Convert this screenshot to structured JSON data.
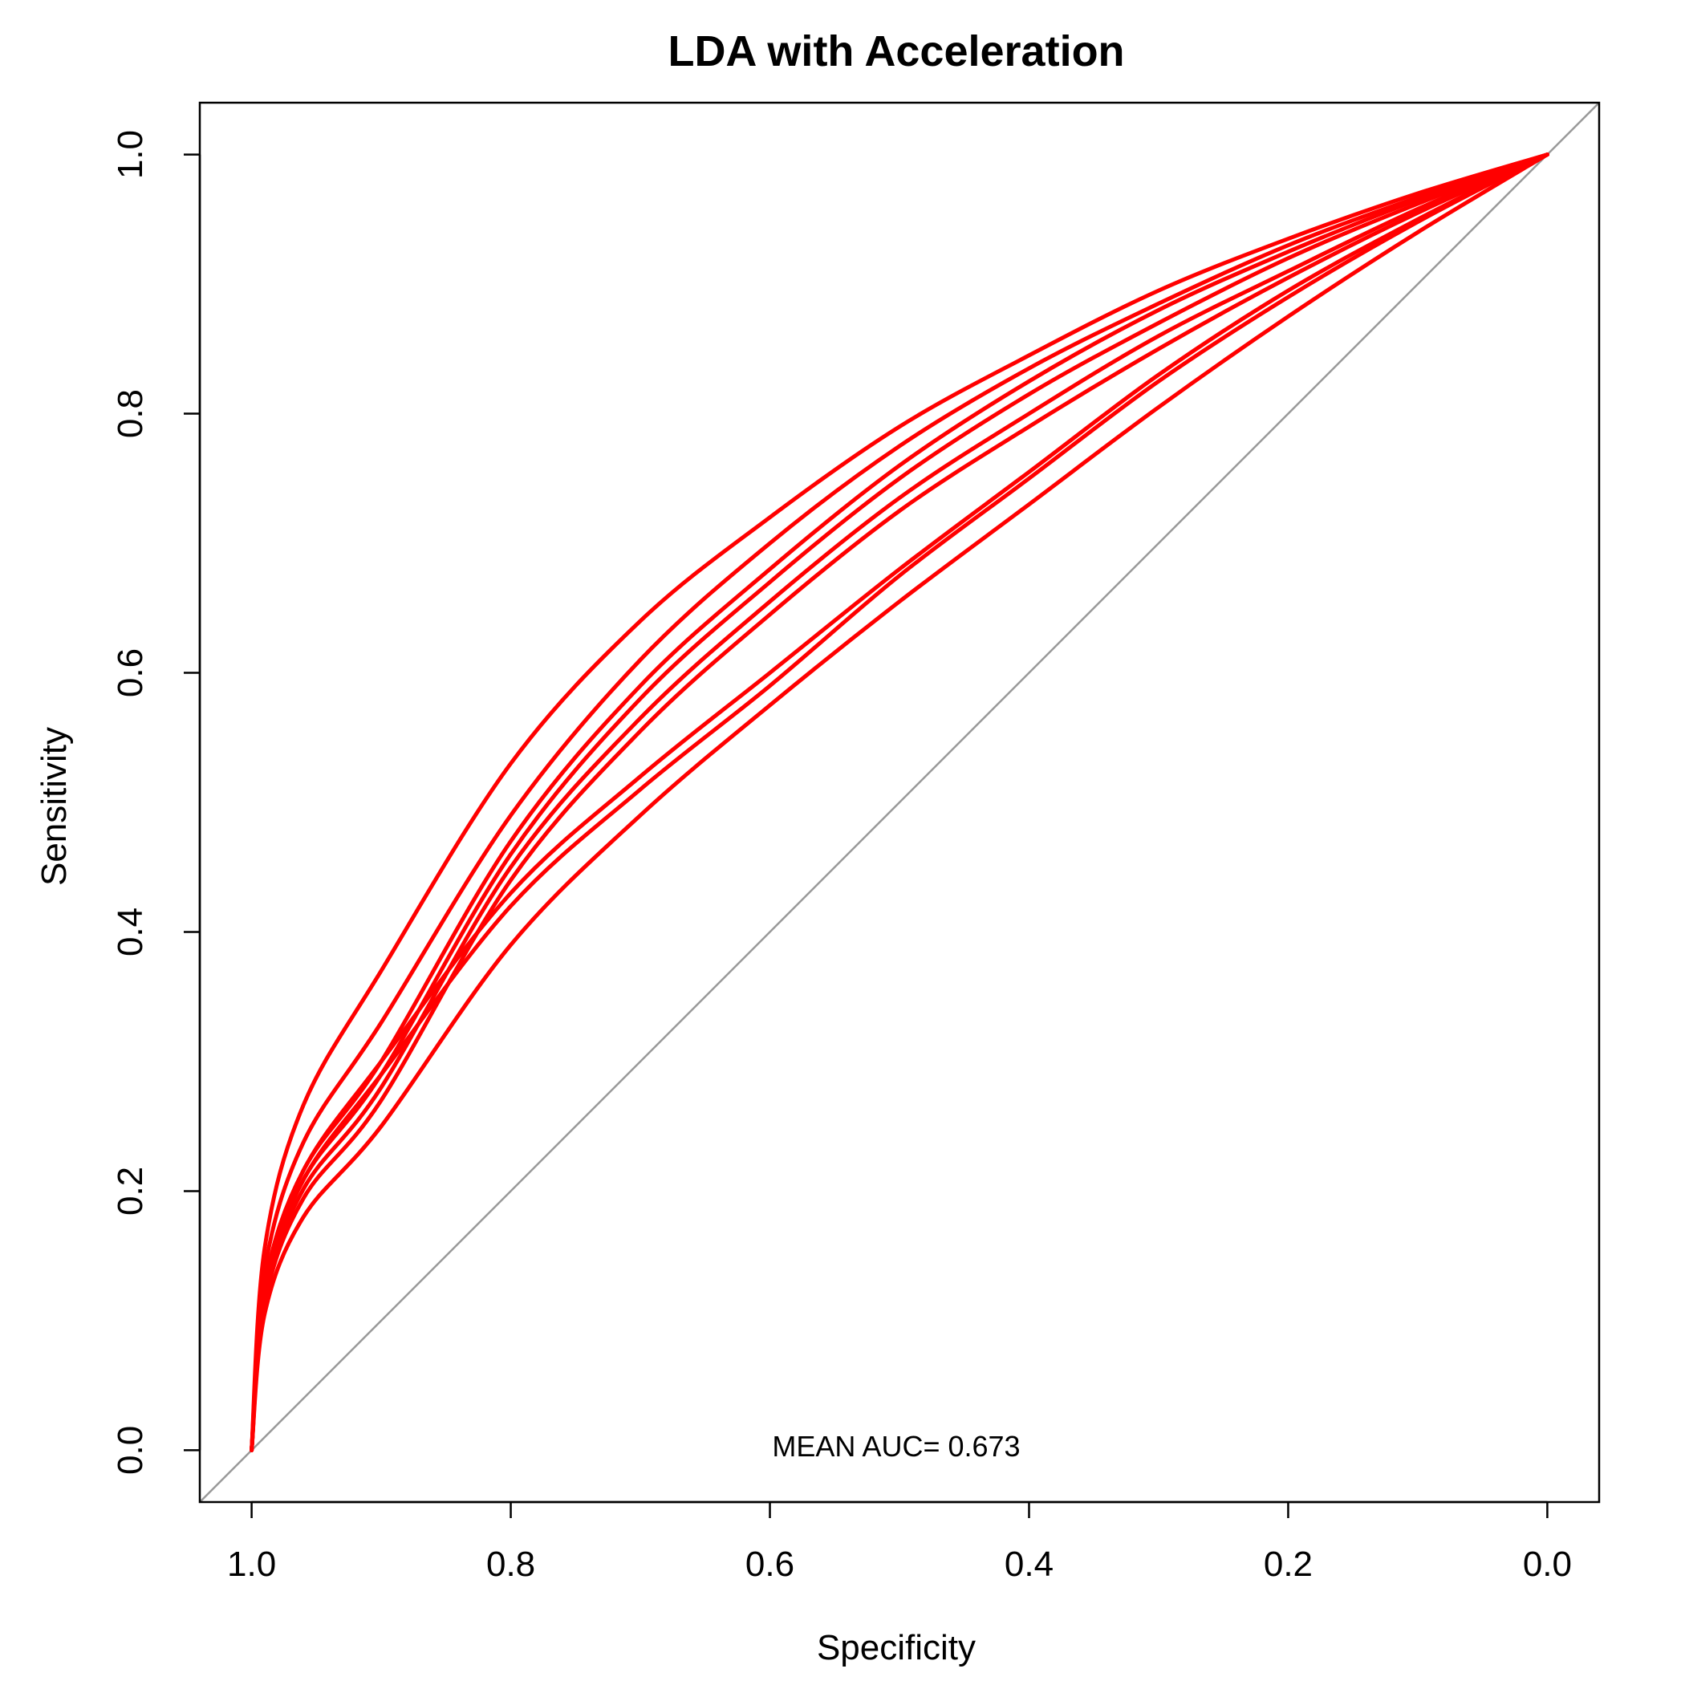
{
  "chart_data": {
    "type": "line",
    "title": "LDA with Acceleration",
    "xlabel": "Specificity",
    "ylabel": "Sensitivity",
    "xlim": [
      1.04,
      -0.04
    ],
    "ylim": [
      -0.04,
      1.04
    ],
    "x_reversed": true,
    "x_ticks": [
      1.0,
      0.8,
      0.6,
      0.4,
      0.2,
      0.0
    ],
    "x_tick_labels": [
      "1.0",
      "0.8",
      "0.6",
      "0.4",
      "0.2",
      "0.0"
    ],
    "y_ticks": [
      0.0,
      0.2,
      0.4,
      0.6,
      0.8,
      1.0
    ],
    "y_tick_labels": [
      "0.0",
      "0.2",
      "0.4",
      "0.6",
      "0.8",
      "1.0"
    ],
    "annotation": "MEAN AUC= 0.673",
    "grid": false,
    "reference_line": {
      "from": [
        1.0,
        0.0
      ],
      "to": [
        0.0,
        1.0
      ],
      "color": "#999999"
    },
    "series_color": "#ff0000",
    "series": [
      {
        "x": [
          1.0,
          0.9,
          0.8,
          0.7,
          0.6,
          0.5,
          0.4,
          0.3,
          0.2,
          0.1,
          0.0
        ],
        "y": [
          0.0,
          0.37,
          0.53,
          0.64,
          0.72,
          0.79,
          0.845,
          0.895,
          0.935,
          0.97,
          1.0
        ]
      },
      {
        "x": [
          1.0,
          0.9,
          0.8,
          0.7,
          0.6,
          0.5,
          0.4,
          0.3,
          0.2,
          0.1,
          0.0
        ],
        "y": [
          0.0,
          0.33,
          0.49,
          0.61,
          0.7,
          0.775,
          0.835,
          0.885,
          0.93,
          0.967,
          1.0
        ]
      },
      {
        "x": [
          1.0,
          0.9,
          0.8,
          0.7,
          0.6,
          0.5,
          0.4,
          0.3,
          0.2,
          0.1,
          0.0
        ],
        "y": [
          0.0,
          0.3,
          0.47,
          0.59,
          0.68,
          0.76,
          0.825,
          0.88,
          0.925,
          0.965,
          1.0
        ]
      },
      {
        "x": [
          1.0,
          0.9,
          0.8,
          0.7,
          0.6,
          0.5,
          0.4,
          0.3,
          0.2,
          0.1,
          0.0
        ],
        "y": [
          0.0,
          0.29,
          0.46,
          0.58,
          0.67,
          0.75,
          0.815,
          0.87,
          0.92,
          0.962,
          1.0
        ]
      },
      {
        "x": [
          1.0,
          0.9,
          0.8,
          0.7,
          0.6,
          0.5,
          0.4,
          0.3,
          0.2,
          0.1,
          0.0
        ],
        "y": [
          0.0,
          0.28,
          0.45,
          0.565,
          0.655,
          0.735,
          0.8,
          0.86,
          0.91,
          0.958,
          1.0
        ]
      },
      {
        "x": [
          1.0,
          0.9,
          0.8,
          0.7,
          0.6,
          0.5,
          0.4,
          0.3,
          0.2,
          0.1,
          0.0
        ],
        "y": [
          0.0,
          0.27,
          0.44,
          0.555,
          0.645,
          0.725,
          0.79,
          0.85,
          0.905,
          0.955,
          1.0
        ]
      },
      {
        "x": [
          1.0,
          0.9,
          0.8,
          0.7,
          0.6,
          0.5,
          0.4,
          0.3,
          0.2,
          0.1,
          0.0
        ],
        "y": [
          0.0,
          0.3,
          0.43,
          0.52,
          0.6,
          0.68,
          0.755,
          0.83,
          0.895,
          0.95,
          1.0
        ]
      },
      {
        "x": [
          1.0,
          0.9,
          0.8,
          0.7,
          0.6,
          0.5,
          0.4,
          0.3,
          0.2,
          0.1,
          0.0
        ],
        "y": [
          0.0,
          0.29,
          0.42,
          0.51,
          0.59,
          0.675,
          0.75,
          0.825,
          0.89,
          0.948,
          1.0
        ]
      },
      {
        "x": [
          1.0,
          0.9,
          0.8,
          0.7,
          0.6,
          0.5,
          0.4,
          0.3,
          0.2,
          0.1,
          0.0
        ],
        "y": [
          0.0,
          0.25,
          0.39,
          0.49,
          0.575,
          0.655,
          0.73,
          0.805,
          0.875,
          0.94,
          1.0
        ]
      }
    ]
  }
}
